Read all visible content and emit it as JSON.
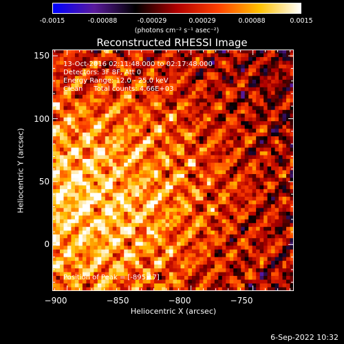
{
  "colorbar": {
    "ticks": [
      "-0.0015",
      "-0.00088",
      "-0.00029",
      "0.00029",
      "0.00088",
      "0.0015"
    ],
    "tick_values": [
      -0.0015,
      -0.00088,
      -0.00029,
      0.00029,
      0.00088,
      0.0015
    ],
    "unit": "(photons cm⁻² s⁻¹ asec⁻²)",
    "range": [
      -0.0015,
      0.0015
    ]
  },
  "chart_data": {
    "type": "heatmap",
    "title": "Reconstructed RHESSI Image",
    "xlabel": "Heliocentric X (arcsec)",
    "ylabel": "Heliocentric Y (arcsec)",
    "xlim": [
      -912,
      -717
    ],
    "ylim": [
      -37,
      155
    ],
    "x_ticks": [
      -900,
      -850,
      -800,
      -750
    ],
    "x_tick_labels": [
      "−900",
      "−850",
      "−800",
      "−750"
    ],
    "y_ticks": [
      0,
      50,
      100,
      150
    ],
    "y_tick_labels": [
      "0",
      "50",
      "100",
      "150"
    ],
    "annotations": [
      "13-Oct-2016 02:11:48.000 to 02:17:48.000",
      "Detectors: 3F 8F, Att 0",
      "Energy Range: 12.0 - 25.0 keV",
      "Clean     Total counts: 4.66E+03"
    ],
    "peak_label": "Position of Peak = [-895,17]",
    "peak_position": [
      -895,
      17
    ],
    "colormap": [
      "#0000ff",
      "#5a1a9c",
      "#000000",
      "#b00000",
      "#ff4000",
      "#ffc000",
      "#ffffff"
    ]
  },
  "footer": {
    "date": "6-Sep-2022 10:32"
  }
}
